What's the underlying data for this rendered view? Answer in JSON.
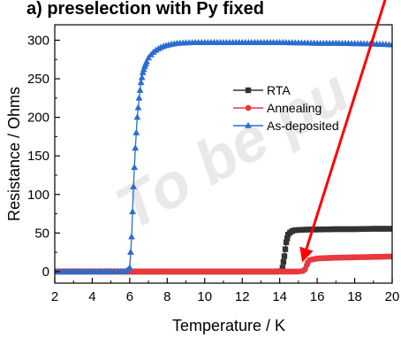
{
  "caption_fragment": "a) preselection with Py fixed",
  "watermark": "To be pu",
  "chart_data": {
    "type": "line",
    "xlabel": "Temperature / K",
    "ylabel": "Resistance / Ohms",
    "xlim": [
      2,
      20
    ],
    "ylim": [
      -15,
      320
    ],
    "xticks": [
      2,
      4,
      6,
      8,
      10,
      12,
      14,
      16,
      18,
      20
    ],
    "yticks": [
      0,
      50,
      100,
      150,
      200,
      250,
      300
    ],
    "grid": false,
    "legend_position": "center-right",
    "series": [
      {
        "name": "RTA",
        "color": "#333333",
        "marker": "square",
        "x": [
          2,
          4,
          6,
          8,
          10,
          12,
          13,
          13.8,
          14.05,
          14.15,
          14.25,
          14.35,
          14.45,
          14.6,
          14.8,
          15,
          15.5,
          16,
          17,
          18,
          19,
          20
        ],
        "y": [
          0,
          0,
          0,
          0,
          0,
          0,
          0,
          0,
          0.5,
          5,
          20,
          38,
          48,
          52,
          53.5,
          54,
          54.5,
          54.5,
          55,
          55,
          55.5,
          55.5
        ]
      },
      {
        "name": "Annealing",
        "color": "#e8393e",
        "marker": "circle",
        "x": [
          2,
          4,
          6,
          8,
          10,
          12,
          14,
          15,
          15.3,
          15.4,
          15.5,
          15.6,
          15.8,
          16,
          16.5,
          17,
          18,
          19,
          20
        ],
        "y": [
          0,
          0,
          0,
          0,
          0,
          0,
          0,
          0,
          1,
          5,
          12,
          15,
          16,
          17,
          17.5,
          18,
          18.5,
          19,
          19.5
        ]
      },
      {
        "name": "As-deposited",
        "color": "#2a6ccf",
        "marker": "triangle",
        "x": [
          2,
          3,
          4,
          5,
          5.8,
          6.0,
          6.1,
          6.2,
          6.3,
          6.4,
          6.5,
          6.6,
          6.7,
          6.8,
          6.9,
          7.0,
          7.2,
          7.4,
          7.6,
          7.8,
          8.0,
          8.3,
          8.6,
          9,
          9.5,
          10,
          11,
          12,
          13,
          14,
          15,
          16,
          17,
          18,
          19,
          20
        ],
        "y": [
          0,
          0,
          0,
          0,
          0,
          5,
          45,
          110,
          160,
          200,
          225,
          245,
          258,
          266,
          272,
          277,
          283,
          287,
          290,
          292,
          293.5,
          295,
          296,
          296.5,
          297,
          297,
          297,
          297,
          297,
          297,
          296.5,
          296,
          296,
          295.5,
          295,
          294
        ]
      }
    ]
  },
  "annotation": {
    "type": "arrow",
    "color": "#ff0000",
    "points_to": [
      15.2,
      12
    ]
  }
}
